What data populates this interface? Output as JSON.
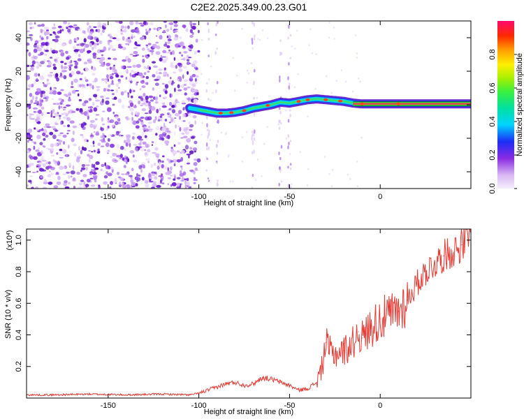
{
  "title": "C2E2.2025.349.00.23.G01",
  "chart_data": [
    {
      "type": "heatmap",
      "xlabel": "Height of straight line (km)",
      "ylabel": "Frequency (Hz)",
      "xlim": [
        -195,
        50
      ],
      "ylim": [
        -50,
        50
      ],
      "xticks": [
        -150,
        -100,
        -50,
        0
      ],
      "yticks": [
        -40,
        -20,
        0,
        20,
        40
      ],
      "colorbar": {
        "label": "Normalized spectral amplitude",
        "ticks": [
          "0.0",
          "0.2",
          "0.4",
          "0.6",
          "0.8"
        ],
        "range": [
          0,
          1
        ]
      },
      "ridge": {
        "x": [
          -105,
          -95,
          -90,
          -85,
          -80,
          -75,
          -70,
          -65,
          -60,
          -55,
          -50,
          -45,
          -40,
          -35,
          -30,
          -25,
          -20,
          -15,
          -10,
          -5,
          0,
          5,
          10,
          15,
          20,
          30,
          40,
          50
        ],
        "y": [
          -2,
          -4,
          -5,
          -5,
          -4.5,
          -3.5,
          -2,
          -1,
          0,
          1.5,
          1,
          2,
          3,
          3.5,
          3,
          2.5,
          2,
          1,
          0.5,
          0.5,
          0.5,
          0.5,
          0.5,
          0.5,
          0.5,
          0.5,
          0.5,
          0.5
        ]
      }
    },
    {
      "type": "line",
      "xlabel": "Height of straight line (km)",
      "ylabel": "SNR (10 * v/v)",
      "ymultiplier": "(x10^4)",
      "xlim": [
        -195,
        50
      ],
      "ylim": [
        0,
        1.07
      ],
      "xticks": [
        -150,
        -100,
        -50,
        0
      ],
      "yticks": [
        "0.2",
        "0.4",
        "0.6",
        "0.8",
        "1.0"
      ],
      "series": [
        {
          "color": "#e83a32",
          "x": [
            -195,
            -180,
            -160,
            -140,
            -120,
            -105,
            -100,
            -95,
            -90,
            -85,
            -80,
            -75,
            -70,
            -65,
            -60,
            -55,
            -50,
            -45,
            -40,
            -35,
            -32,
            -30,
            -28,
            -25,
            -20,
            -15,
            -12,
            -10,
            -5,
            0,
            5,
            10,
            15,
            20,
            25,
            30,
            35,
            40,
            45,
            50
          ],
          "y": [
            0.02,
            0.02,
            0.025,
            0.02,
            0.025,
            0.02,
            0.03,
            0.05,
            0.07,
            0.09,
            0.1,
            0.08,
            0.09,
            0.13,
            0.12,
            0.1,
            0.08,
            0.05,
            0.06,
            0.1,
            0.2,
            0.35,
            0.3,
            0.28,
            0.3,
            0.35,
            0.42,
            0.38,
            0.45,
            0.5,
            0.52,
            0.55,
            0.62,
            0.72,
            0.8,
            0.85,
            0.9,
            0.93,
            0.97,
            1.02
          ]
        }
      ]
    }
  ],
  "tick_labels_x": [
    "-150",
    "-100",
    "-50",
    "0"
  ],
  "tick_labels_y_top": [
    "40",
    "20",
    "0",
    "-20",
    "-40"
  ],
  "multiplier_text": "(x10",
  "multiplier_exp": "4",
  "multiplier_close": ")"
}
